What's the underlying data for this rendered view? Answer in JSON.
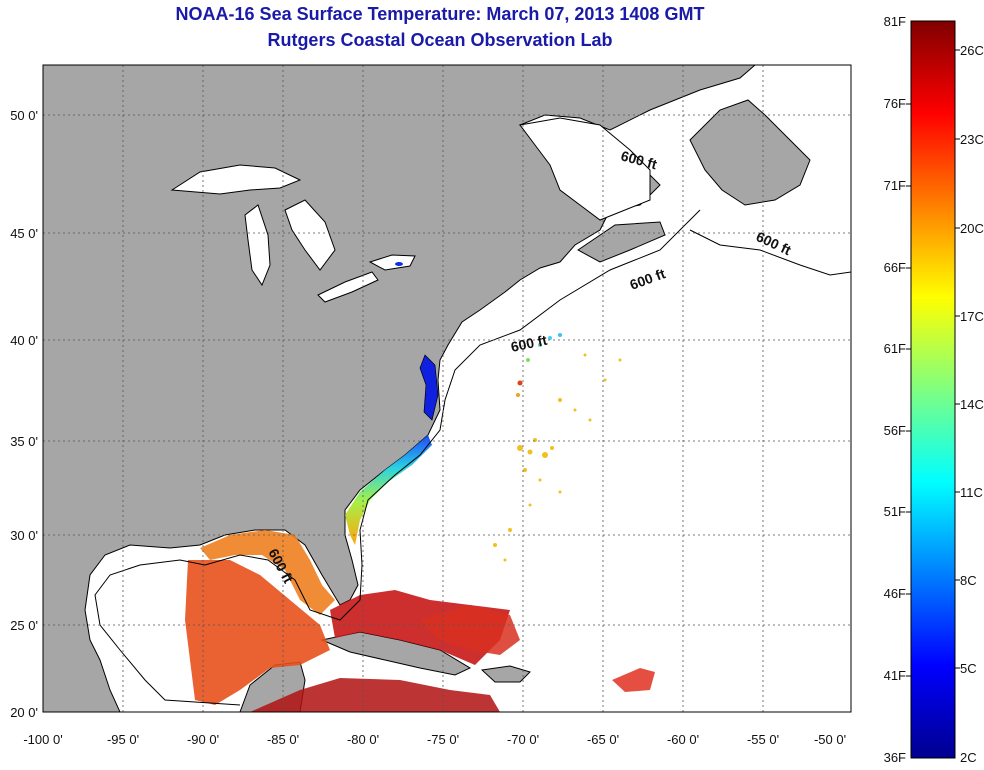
{
  "title": {
    "line1": "NOAA-16 Sea Surface Temperature:  March 07, 2013 1408 GMT",
    "line2": "Rutgers Coastal Ocean Observation Lab"
  },
  "map": {
    "lon_ticks": [
      "-100 0'",
      "-95 0'",
      "-90 0'",
      "-85 0'",
      "-80 0'",
      "-75 0'",
      "-70 0'",
      "-65 0'",
      "-60 0'",
      "-55 0'",
      "-50 0'"
    ],
    "lat_ticks": [
      "20 0'",
      "25 0'",
      "30 0'",
      "35 0'",
      "40 0'",
      "45 0'",
      "50 0'"
    ],
    "isobath_labels": [
      "600 ft",
      "600 ft",
      "600 ft",
      "600 ft",
      "600 ft"
    ],
    "colors": {
      "land": "#a6a6a6",
      "ocean_missing": "#ffffff",
      "coastline": "#000000",
      "grid": "#555555"
    }
  },
  "colorbar": {
    "fahrenheit_labels": [
      "81F",
      "76F",
      "71F",
      "66F",
      "61F",
      "56F",
      "51F",
      "46F",
      "41F",
      "36F"
    ],
    "celsius_labels": [
      "26C",
      "23C",
      "20C",
      "17C",
      "14C",
      "11C",
      "8C",
      "5C",
      "2C"
    ],
    "range_f": [
      36,
      81
    ],
    "colormap": "jet"
  }
}
